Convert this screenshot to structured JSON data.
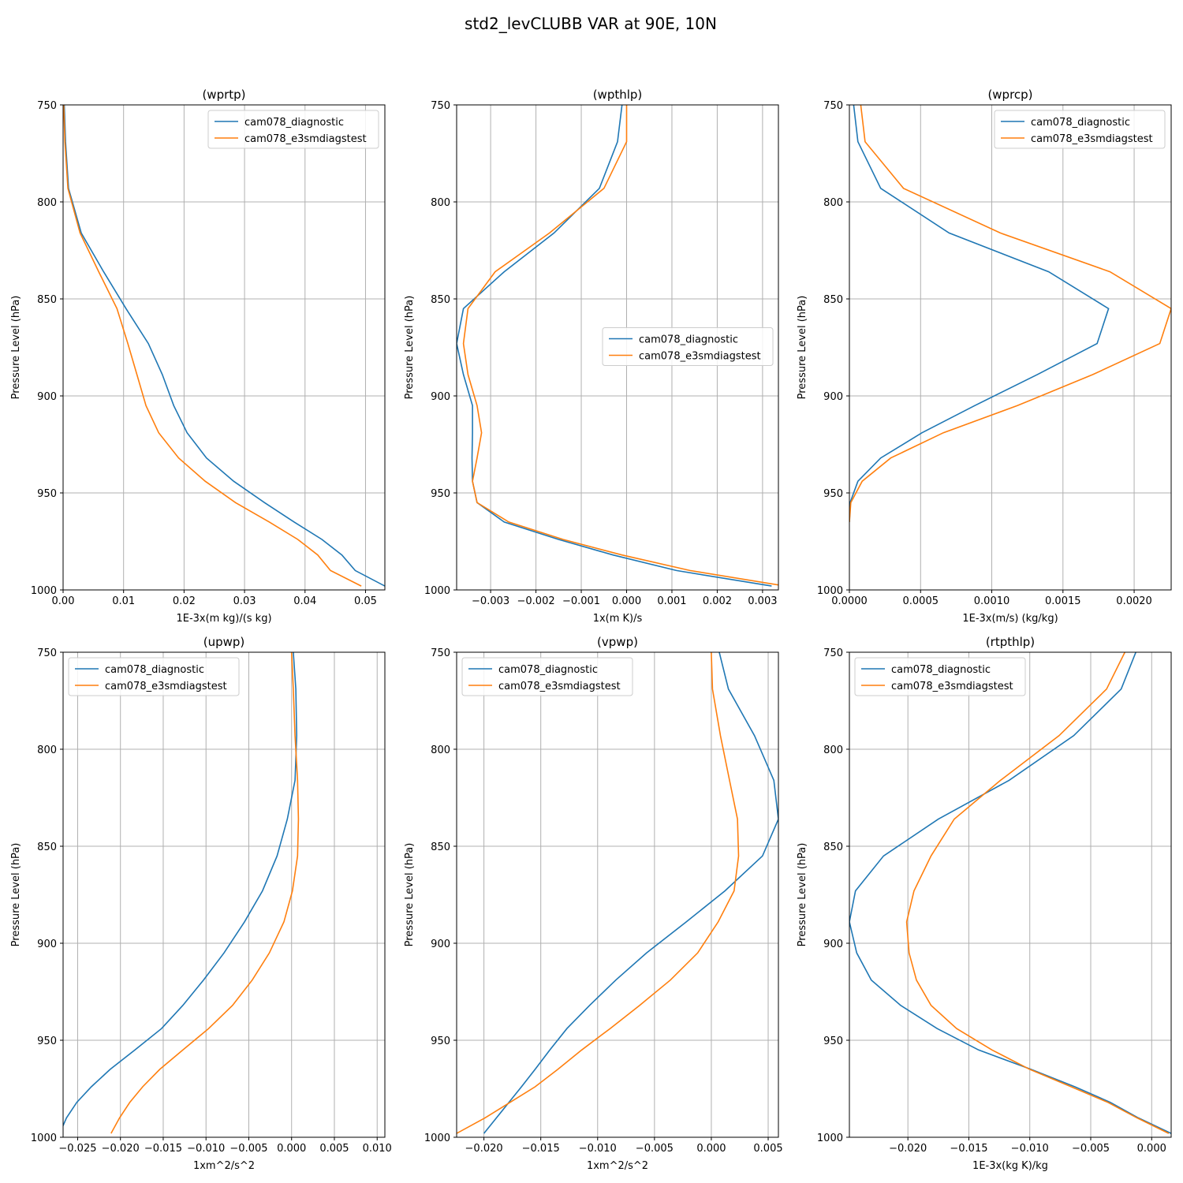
{
  "figure": {
    "suptitle": "std2_levCLUBB VAR at 90E, 10N"
  },
  "colors": {
    "diagnostic": "#1f77b4",
    "e3smdiagstest": "#ff7f0e"
  },
  "chart_data": [
    {
      "type": "line",
      "title": "(wprtp)",
      "xlabel": "1E-3x(m kg)/(s kg)",
      "ylabel": "Pressure Level (hPa)",
      "xlim": [
        0,
        0.0532
      ],
      "ylim": [
        1000,
        750
      ],
      "xticks": [
        0,
        0.01,
        0.02,
        0.03,
        0.04,
        0.05
      ],
      "xtick_labels": [
        "0.00",
        "0.01",
        "0.02",
        "0.03",
        "0.04",
        "0.05"
      ],
      "yticks": [
        750,
        800,
        850,
        900,
        950,
        1000
      ],
      "ytick_labels": [
        "750",
        "800",
        "850",
        "900",
        "950",
        "1000"
      ],
      "legend": "upper-right",
      "grid": true,
      "y": [
        750,
        769,
        793,
        816,
        836,
        855,
        873,
        889,
        905,
        919,
        932,
        944,
        955,
        965,
        974,
        982,
        990,
        998
      ],
      "series": [
        {
          "name": "cam078_diagnostic",
          "x": [
            0.0002,
            0.0004,
            0.0009,
            0.003,
            0.0067,
            0.0104,
            0.0141,
            0.0164,
            0.0183,
            0.0205,
            0.0237,
            0.0282,
            0.0333,
            0.0382,
            0.0428,
            0.0461,
            0.0483,
            0.0532
          ]
        },
        {
          "name": "cam078_e3smdiagstest",
          "x": [
            0.0001,
            0.0003,
            0.0008,
            0.0028,
            0.0059,
            0.0089,
            0.0107,
            0.0122,
            0.0137,
            0.0158,
            0.0191,
            0.0235,
            0.0285,
            0.0341,
            0.0388,
            0.0421,
            0.0442,
            0.0493
          ]
        }
      ]
    },
    {
      "type": "line",
      "title": "(wpthlp)",
      "xlabel": "1x(m K)/s",
      "ylabel": "Pressure Level (hPa)",
      "xlim": [
        -0.00375,
        0.00335
      ],
      "ylim": [
        1000,
        750
      ],
      "xticks": [
        -0.003,
        -0.002,
        -0.001,
        0,
        0.001,
        0.002,
        0.003
      ],
      "xtick_labels": [
        "−0.003",
        "−0.002",
        "−0.001",
        "0.000",
        "0.001",
        "0.002",
        "0.003"
      ],
      "yticks": [
        750,
        800,
        850,
        900,
        950,
        1000
      ],
      "ytick_labels": [
        "750",
        "800",
        "850",
        "900",
        "950",
        "1000"
      ],
      "legend": "center-right",
      "grid": true,
      "y": [
        750,
        769,
        793,
        816,
        836,
        855,
        873,
        889,
        905,
        919,
        932,
        944,
        955,
        965,
        974,
        982,
        990,
        998
      ],
      "series": [
        {
          "name": "cam078_diagnostic",
          "x": [
            -0.0001,
            -0.0002,
            -0.0006,
            -0.0016,
            -0.0027,
            -0.0036,
            -0.00375,
            -0.0036,
            -0.0034,
            -0.0034,
            -0.00341,
            -0.0034,
            -0.0033,
            -0.0027,
            -0.0015,
            -0.0003,
            0.0011,
            0.0032
          ]
        },
        {
          "name": "cam078_e3smdiagstest",
          "x": [
            0,
            0,
            -0.0005,
            -0.0017,
            -0.0029,
            -0.0035,
            -0.0036,
            -0.0035,
            -0.0033,
            -0.0032,
            -0.0033,
            -0.0034,
            -0.0033,
            -0.0026,
            -0.0014,
            -0.0001,
            0.0014,
            0.0035
          ]
        }
      ]
    },
    {
      "type": "line",
      "title": "(wprcp)",
      "xlabel": "1E-3x(m/s) (kg/kg)",
      "ylabel": "Pressure Level (hPa)",
      "xlim": [
        0,
        0.00226
      ],
      "ylim": [
        1000,
        750
      ],
      "xticks": [
        0,
        0.0005,
        0.001,
        0.0015,
        0.002
      ],
      "xtick_labels": [
        "0.0000",
        "0.0005",
        "0.0010",
        "0.0015",
        "0.0020"
      ],
      "yticks": [
        750,
        800,
        850,
        900,
        950,
        1000
      ],
      "ytick_labels": [
        "750",
        "800",
        "850",
        "900",
        "950",
        "1000"
      ],
      "legend": "upper-right",
      "grid": true,
      "y": [
        750,
        769,
        793,
        816,
        836,
        855,
        873,
        889,
        905,
        919,
        932,
        944,
        955,
        965
      ],
      "series": [
        {
          "name": "cam078_diagnostic",
          "x": [
            3e-05,
            6e-05,
            0.00022,
            0.0007,
            0.0014,
            0.00182,
            0.00174,
            0.00132,
            0.00088,
            0.00051,
            0.00022,
            6e-05,
            5e-06,
            0
          ]
        },
        {
          "name": "cam078_e3smdiagstest",
          "x": [
            8e-05,
            0.00011,
            0.00038,
            0.00106,
            0.00183,
            0.00226,
            0.00218,
            0.00171,
            0.00118,
            0.00066,
            0.00029,
            9e-05,
            1e-05,
            0
          ]
        }
      ]
    },
    {
      "type": "line",
      "title": "(upwp)",
      "xlabel": "1xm^2/s^2",
      "ylabel": "Pressure Level (hPa)",
      "xlim": [
        -0.0267,
        0.0109
      ],
      "ylim": [
        1000,
        750
      ],
      "xticks": [
        -0.025,
        -0.02,
        -0.015,
        -0.01,
        -0.005,
        0,
        0.005,
        0.01
      ],
      "xtick_labels": [
        "−0.025",
        "−0.020",
        "−0.015",
        "−0.010",
        "−0.005",
        "0.000",
        "0.005",
        "0.010"
      ],
      "yticks": [
        750,
        800,
        850,
        900,
        950,
        1000
      ],
      "ytick_labels": [
        "750",
        "800",
        "850",
        "900",
        "950",
        "1000"
      ],
      "legend": "upper-left",
      "grid": true,
      "y": [
        750,
        769,
        793,
        816,
        836,
        855,
        873,
        889,
        905,
        919,
        932,
        944,
        955,
        965,
        974,
        982,
        990,
        998
      ],
      "series": [
        {
          "name": "cam078_diagnostic",
          "x": [
            0.0002,
            0.0005,
            0.0006,
            0.0004,
            -0.0005,
            -0.0017,
            -0.0034,
            -0.0055,
            -0.0079,
            -0.0103,
            -0.0127,
            -0.0152,
            -0.0183,
            -0.0212,
            -0.0234,
            -0.0251,
            -0.0263,
            -0.0271
          ]
        },
        {
          "name": "cam078_e3smdiagstest",
          "x": [
            0,
            0.0002,
            0.0004,
            0.0007,
            0.0008,
            0.0007,
            0.0001,
            -0.0009,
            -0.0026,
            -0.0046,
            -0.0069,
            -0.0097,
            -0.0127,
            -0.0154,
            -0.0174,
            -0.0189,
            -0.0201,
            -0.0211
          ]
        }
      ]
    },
    {
      "type": "line",
      "title": "(vpwp)",
      "xlabel": "1xm^2/s^2",
      "ylabel": "Pressure Level (hPa)",
      "xlim": [
        -0.0224,
        0.0059
      ],
      "ylim": [
        1000,
        750
      ],
      "xticks": [
        -0.02,
        -0.015,
        -0.01,
        -0.005,
        0,
        0.005
      ],
      "xtick_labels": [
        "−0.020",
        "−0.015",
        "−0.010",
        "−0.005",
        "0.000",
        "0.005"
      ],
      "yticks": [
        750,
        800,
        850,
        900,
        950,
        1000
      ],
      "ytick_labels": [
        "750",
        "800",
        "850",
        "900",
        "950",
        "1000"
      ],
      "legend": "upper-left",
      "grid": true,
      "y": [
        750,
        769,
        793,
        816,
        836,
        855,
        873,
        889,
        905,
        919,
        932,
        944,
        955,
        965,
        974,
        982,
        990,
        998
      ],
      "series": [
        {
          "name": "cam078_diagnostic",
          "x": [
            0.0007,
            0.0015,
            0.0038,
            0.0055,
            0.0059,
            0.0045,
            0.0012,
            -0.0022,
            -0.0057,
            -0.0084,
            -0.0107,
            -0.0127,
            -0.0142,
            -0.0155,
            -0.0167,
            -0.0178,
            -0.0189,
            -0.02
          ]
        },
        {
          "name": "cam078_e3smdiagstest",
          "x": [
            0,
            0.0001,
            0.0008,
            0.0016,
            0.0023,
            0.0024,
            0.002,
            0.0006,
            -0.0012,
            -0.0036,
            -0.0063,
            -0.0089,
            -0.0114,
            -0.0135,
            -0.0155,
            -0.0177,
            -0.0199,
            -0.0224
          ]
        }
      ]
    },
    {
      "type": "line",
      "title": "(rtpthlp)",
      "xlabel": "1E-3x(kg K)/kg",
      "ylabel": "Pressure Level (hPa)",
      "xlim": [
        -0.0248,
        0.0016
      ],
      "ylim": [
        1000,
        750
      ],
      "xticks": [
        -0.02,
        -0.015,
        -0.01,
        -0.005,
        0
      ],
      "xtick_labels": [
        "−0.020",
        "−0.015",
        "−0.010",
        "−0.005",
        "0.000"
      ],
      "yticks": [
        750,
        800,
        850,
        900,
        950,
        1000
      ],
      "ytick_labels": [
        "750",
        "800",
        "850",
        "900",
        "950",
        "1000"
      ],
      "legend": "upper-left",
      "grid": true,
      "y": [
        750,
        769,
        793,
        816,
        836,
        855,
        873,
        889,
        905,
        919,
        932,
        944,
        955,
        965,
        974,
        982,
        990,
        998
      ],
      "series": [
        {
          "name": "cam078_diagnostic",
          "x": [
            -0.0013,
            -0.0025,
            -0.0064,
            -0.0117,
            -0.0175,
            -0.022,
            -0.0243,
            -0.0248,
            -0.0242,
            -0.023,
            -0.0206,
            -0.0176,
            -0.0142,
            -0.0099,
            -0.0063,
            -0.0034,
            -0.0011,
            0.0016
          ]
        },
        {
          "name": "cam078_e3smdiagstest",
          "x": [
            -0.0022,
            -0.0037,
            -0.0076,
            -0.0124,
            -0.0162,
            -0.0181,
            -0.0195,
            -0.0201,
            -0.0199,
            -0.0193,
            -0.0181,
            -0.016,
            -0.0131,
            -0.01,
            -0.0066,
            -0.0036,
            -0.0012,
            0.0014
          ]
        }
      ]
    }
  ]
}
